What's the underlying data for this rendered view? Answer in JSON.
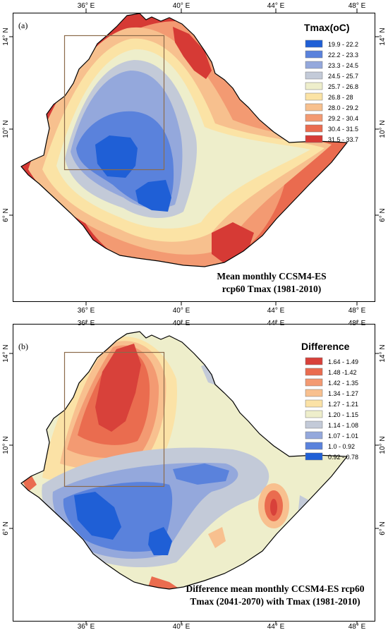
{
  "panels": [
    {
      "label": "(a)",
      "x_ticks": [
        "36° E",
        "40° E",
        "44° E",
        "48° E"
      ],
      "y_ticks": [
        "14° N",
        "10° N",
        "6° N"
      ],
      "legend": {
        "title": "Tmax(oC)",
        "items": [
          {
            "label": "19.9 - 22.2",
            "color": "#1f5fd6"
          },
          {
            "label": "22.2 - 23.3",
            "color": "#5a82dc"
          },
          {
            "label": "23.3 - 24.5",
            "color": "#94a8dc"
          },
          {
            "label": "24.5 - 25.7",
            "color": "#c3cad8"
          },
          {
            "label": "25.7 - 26.8",
            "color": "#eeeecb"
          },
          {
            "label": "26.8 - 28",
            "color": "#fbe3a5"
          },
          {
            "label": "28.0 - 29.2",
            "color": "#f7c08e"
          },
          {
            "label": "29.2 - 30.4",
            "color": "#f39a72"
          },
          {
            "label": "30.4 - 31.5",
            "color": "#ea6b4f"
          },
          {
            "label": "31.5 - 33.7",
            "color": "#d63a35"
          }
        ]
      },
      "caption": [
        "Mean monthly CCSM4-ES",
        "rcp60 Tmax (1981-2010)"
      ]
    },
    {
      "label": "(b)",
      "x_ticks": [
        "36° E",
        "40° E",
        "44° E",
        "48° E"
      ],
      "y_ticks": [
        "14° N",
        "10° N",
        "6° N"
      ],
      "legend": {
        "title": "Difference",
        "items": [
          {
            "label": "1.64 - 1.49",
            "color": "#d8413a"
          },
          {
            "label": "1.48 -1.42",
            "color": "#ea6c4f"
          },
          {
            "label": "1.42 - 1.35",
            "color": "#f39a72"
          },
          {
            "label": "1.34 - 1.27",
            "color": "#f8c08f"
          },
          {
            "label": "1.27 - 1.21",
            "color": "#fbe2a6"
          },
          {
            "label": "1.20 - 1.15",
            "color": "#eeeecb"
          },
          {
            "label": "1.14 - 1.08",
            "color": "#c3cad8"
          },
          {
            "label": "1.07 - 1.01",
            "color": "#94a8dc"
          },
          {
            "label": "1.0 - 0.92",
            "color": "#5a82dc"
          },
          {
            "label": "0.92 - 0.78",
            "color": "#1f5fd6"
          }
        ]
      },
      "caption": [
        "Difference mean monthly CCSM4-ES rcp60",
        "Tmax (2041-2070) with Tmax (1981-2010)"
      ]
    }
  ],
  "colors": {
    "frame": "#000000",
    "study_box": "#8b6a4a",
    "outside": "#ffffff"
  }
}
